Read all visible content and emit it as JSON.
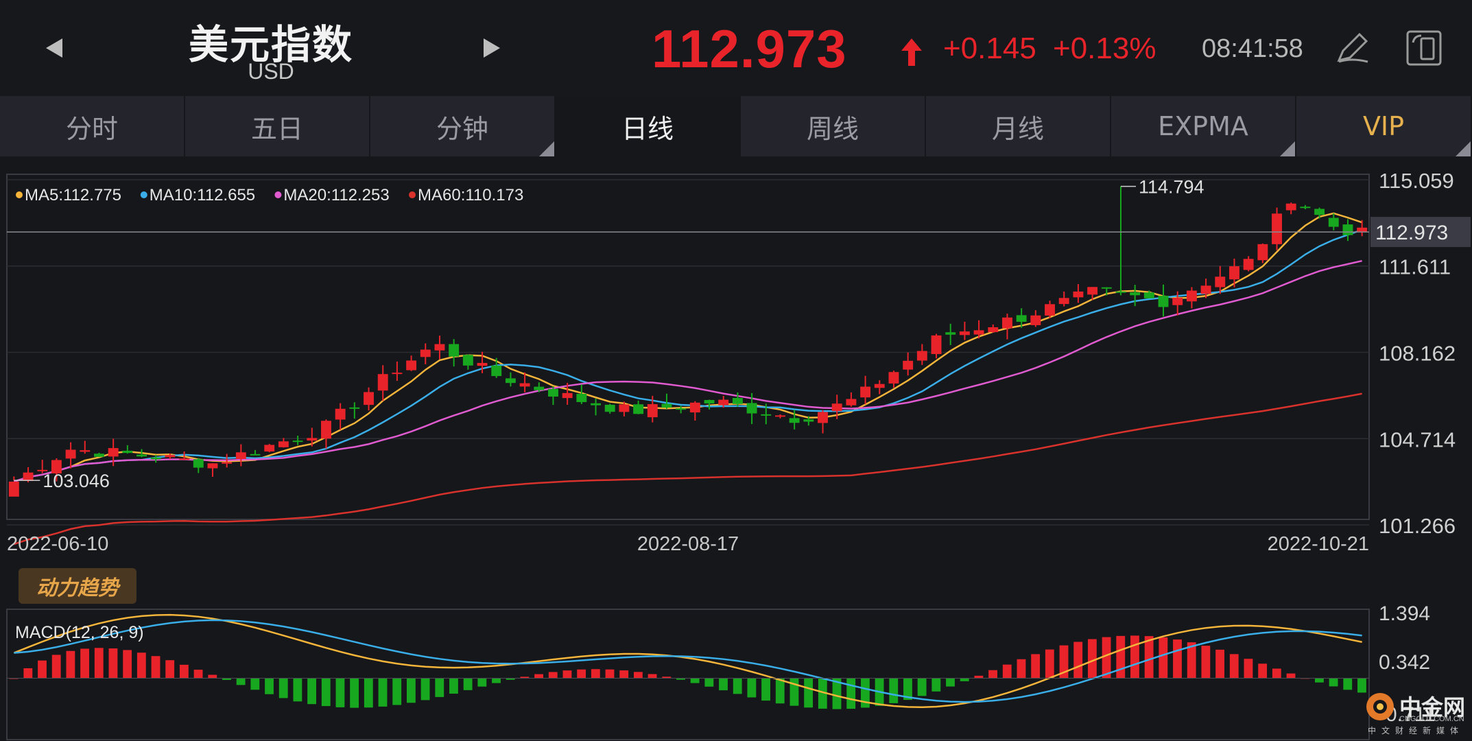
{
  "header": {
    "title": "美元指数",
    "subtitle": "USD",
    "price": "112.973",
    "change": "+0.145",
    "change_pct": "+0.13%",
    "time": "08:41:58",
    "up_color": "#e8232a"
  },
  "tabs": [
    {
      "label": "分时"
    },
    {
      "label": "五日"
    },
    {
      "label": "分钟"
    },
    {
      "label": "日线"
    },
    {
      "label": "周线"
    },
    {
      "label": "月线"
    },
    {
      "label": "EXPMA"
    },
    {
      "label": "VIP"
    }
  ],
  "active_tab": "日线",
  "chart_data": [
    {
      "type": "candlestick",
      "legend": [
        {
          "name": "MA5:112.775",
          "color": "#f5b53b"
        },
        {
          "name": "MA10:112.655",
          "color": "#3aaee8"
        },
        {
          "name": "MA20:112.253",
          "color": "#e05ad0"
        },
        {
          "name": "MA60:110.173",
          "color": "#d9322c"
        }
      ],
      "y_ticks": [
        "115.059",
        "111.611",
        "108.162",
        "104.714",
        "101.266"
      ],
      "current_price_label": "112.973",
      "high_label": "114.794",
      "low_label": "103.046",
      "x_ticks": [
        "2022-06-10",
        "2022-08-17",
        "2022-10-21"
      ],
      "ylim": [
        101.266,
        115.059
      ],
      "colors": {
        "up": "#e8232a",
        "down": "#17a81f"
      }
    },
    {
      "type": "macd",
      "title": "MACD(12, 26, 9)",
      "y_ticks": [
        "1.394",
        "0.342",
        "-0.711"
      ],
      "ylim": [
        -1.24,
        1.394
      ],
      "colors": {
        "dif": "#f5b53b",
        "dea": "#3aaee8"
      }
    }
  ],
  "indicator_tag": "动力趋势",
  "watermark_logo": {
    "text": "中金网",
    "sub": "CNGOLD.COM.CN",
    "sub2": "中文财经新媒体"
  }
}
